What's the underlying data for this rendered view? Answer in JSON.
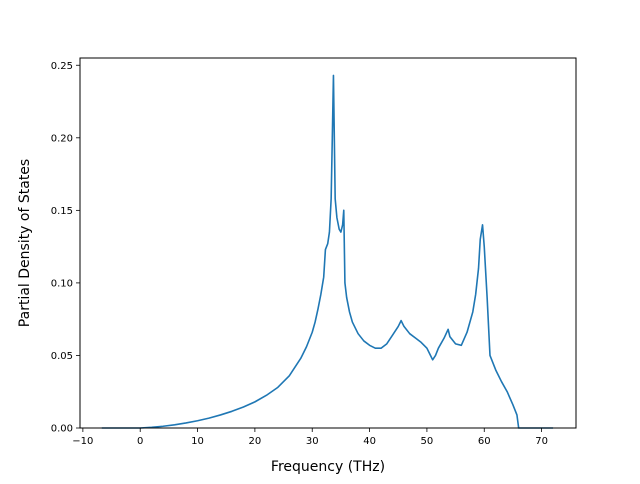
{
  "chart_data": {
    "type": "line",
    "title": "",
    "xlabel": "Frequency (THz)",
    "ylabel": "Partial Density of States",
    "xlim": [
      -10.5,
      76
    ],
    "ylim": [
      0,
      0.255
    ],
    "grid": false,
    "legend": "none",
    "x_ticks": [
      {
        "value": -10,
        "label": "−10"
      },
      {
        "value": 0,
        "label": "0"
      },
      {
        "value": 10,
        "label": "10"
      },
      {
        "value": 20,
        "label": "20"
      },
      {
        "value": 30,
        "label": "30"
      },
      {
        "value": 40,
        "label": "40"
      },
      {
        "value": 50,
        "label": "50"
      },
      {
        "value": 60,
        "label": "60"
      },
      {
        "value": 70,
        "label": "70"
      }
    ],
    "y_ticks": [
      {
        "value": 0,
        "label": "0.00"
      },
      {
        "value": 0.05,
        "label": "0.05"
      },
      {
        "value": 0.1,
        "label": "0.10"
      },
      {
        "value": 0.15,
        "label": "0.15"
      },
      {
        "value": 0.2,
        "label": "0.20"
      },
      {
        "value": 0.25,
        "label": "0.25"
      }
    ],
    "series": [
      {
        "color": "#1f77b4",
        "x": [
          -6.7,
          -4,
          -2,
          0,
          2,
          4,
          6,
          8,
          10,
          12,
          14,
          16,
          18,
          20,
          22,
          24,
          26,
          28,
          29,
          30,
          30.5,
          31,
          31.5,
          32,
          32.3,
          32.7,
          33,
          33.3,
          33.5,
          33.7,
          34,
          34.3,
          34.7,
          35,
          35.3,
          35.5,
          35.7,
          36,
          36.5,
          37,
          38,
          39,
          40,
          41,
          42,
          43,
          44,
          45,
          45.5,
          46,
          47,
          48,
          49,
          50,
          50.5,
          51,
          51.5,
          52,
          53,
          53.7,
          54,
          55,
          56,
          57,
          58,
          58.5,
          59,
          59.3,
          59.7,
          60,
          60.5,
          61,
          62,
          63,
          64,
          65,
          65.7,
          66,
          68,
          70,
          72
        ],
        "y": [
          0,
          0,
          0,
          0,
          0.0005,
          0.0012,
          0.0022,
          0.0035,
          0.005,
          0.0068,
          0.009,
          0.0115,
          0.0145,
          0.018,
          0.0225,
          0.028,
          0.036,
          0.048,
          0.056,
          0.066,
          0.073,
          0.082,
          0.092,
          0.104,
          0.123,
          0.127,
          0.135,
          0.158,
          0.2,
          0.243,
          0.158,
          0.145,
          0.137,
          0.135,
          0.14,
          0.15,
          0.1,
          0.09,
          0.08,
          0.073,
          0.065,
          0.06,
          0.057,
          0.055,
          0.055,
          0.058,
          0.064,
          0.07,
          0.074,
          0.07,
          0.065,
          0.062,
          0.059,
          0.055,
          0.051,
          0.047,
          0.05,
          0.055,
          0.062,
          0.068,
          0.063,
          0.058,
          0.057,
          0.066,
          0.08,
          0.092,
          0.11,
          0.13,
          0.14,
          0.125,
          0.09,
          0.05,
          0.04,
          0.032,
          0.025,
          0.016,
          0.009,
          0,
          0,
          0,
          0
        ]
      }
    ]
  }
}
